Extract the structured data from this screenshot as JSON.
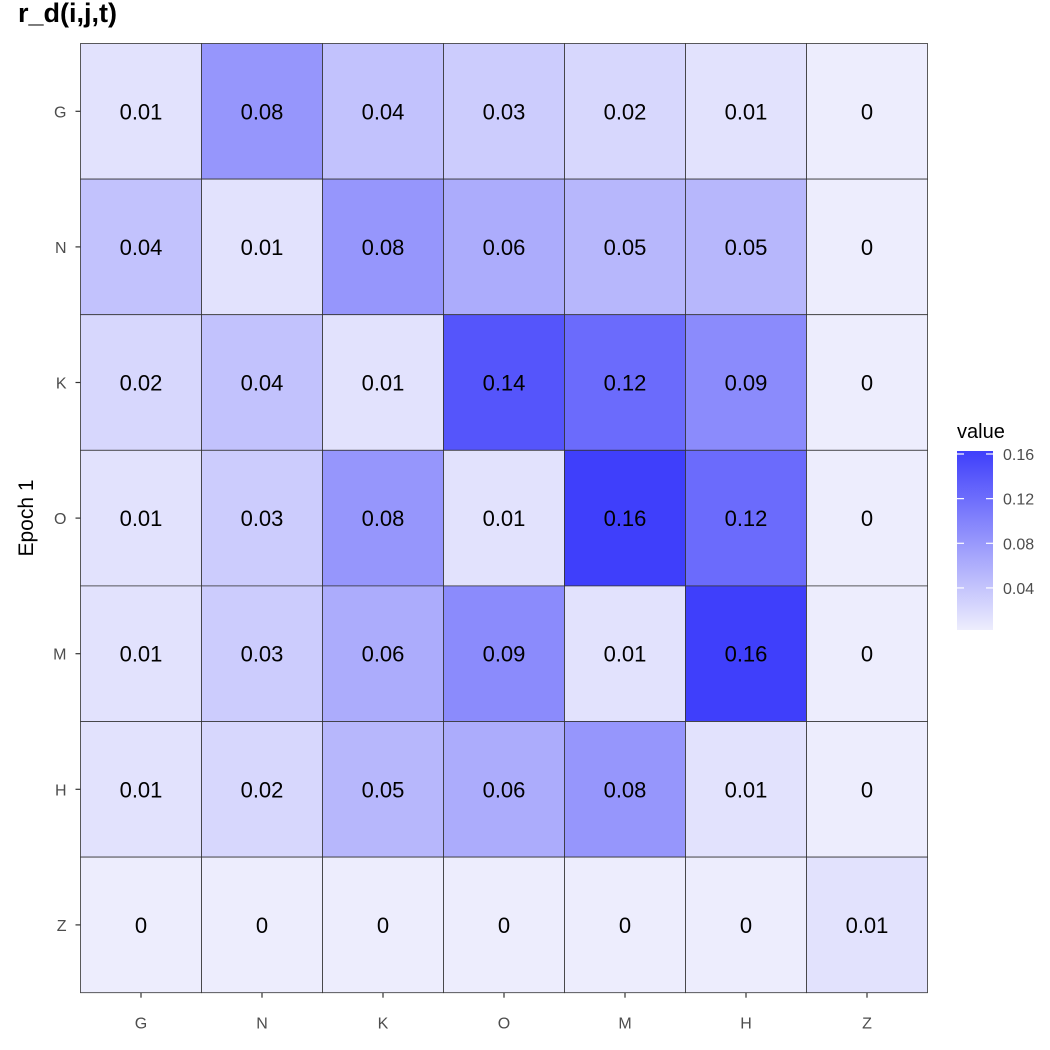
{
  "chart_data": {
    "type": "heatmap",
    "title": "r_d(i,j,t)",
    "ylabel": "Epoch 1",
    "xlabel": "",
    "x_categories": [
      "G",
      "N",
      "K",
      "O",
      "M",
      "H",
      "Z"
    ],
    "y_categories": [
      "G",
      "N",
      "K",
      "O",
      "M",
      "H",
      "Z"
    ],
    "values": [
      [
        0.01,
        0.08,
        0.04,
        0.03,
        0.02,
        0.01,
        0
      ],
      [
        0.04,
        0.01,
        0.08,
        0.06,
        0.05,
        0.05,
        0
      ],
      [
        0.02,
        0.04,
        0.01,
        0.14,
        0.12,
        0.09,
        0
      ],
      [
        0.01,
        0.03,
        0.08,
        0.01,
        0.16,
        0.12,
        0
      ],
      [
        0.01,
        0.03,
        0.06,
        0.09,
        0.01,
        0.16,
        0
      ],
      [
        0.01,
        0.02,
        0.05,
        0.06,
        0.08,
        0.01,
        0
      ],
      [
        0,
        0,
        0,
        0,
        0,
        0,
        0.01
      ]
    ],
    "value_range": [
      0,
      0.16
    ],
    "color_low": "#ededfd",
    "color_high": "#3f3ffb",
    "legend": {
      "title": "value",
      "ticks": [
        0.04,
        0.08,
        0.12,
        0.16
      ],
      "tick_labels": [
        "0.04",
        "0.08",
        "0.12",
        "0.16"
      ],
      "position": "right"
    },
    "grid": false
  }
}
